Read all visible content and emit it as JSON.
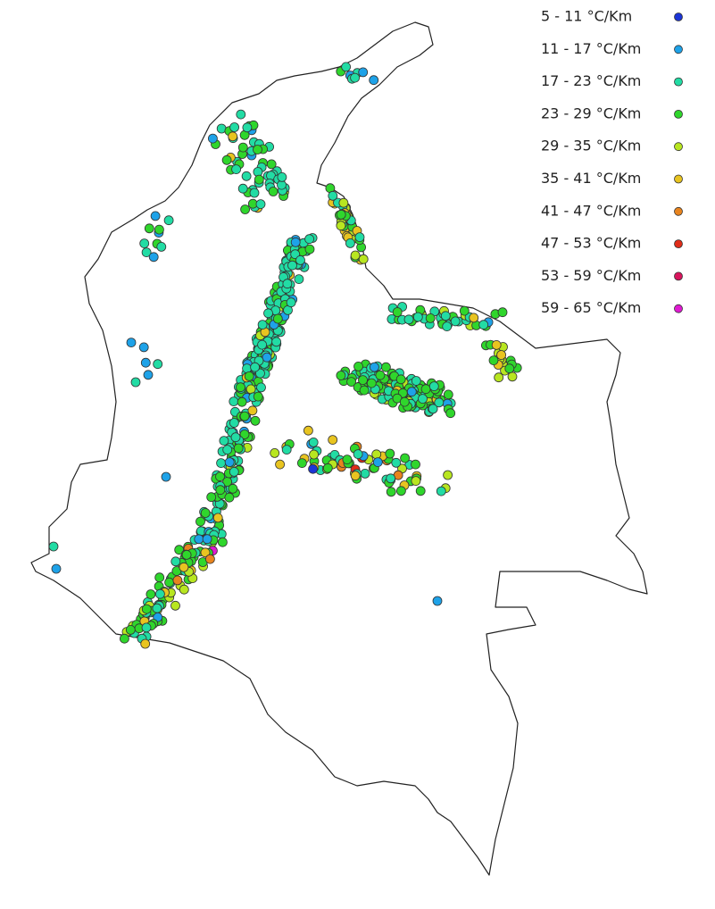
{
  "legend": {
    "items": [
      {
        "label": "5 - 11 °C/Km",
        "color": "#1c35d6"
      },
      {
        "label": "11 - 17 °C/Km",
        "color": "#1ea2e8"
      },
      {
        "label": "17 - 23 °C/Km",
        "color": "#22dca4"
      },
      {
        "label": "23 - 29 °C/Km",
        "color": "#2fd62c"
      },
      {
        "label": "29 - 35 °C/Km",
        "color": "#b8e620"
      },
      {
        "label": "35 - 41 °C/Km",
        "color": "#e8c420"
      },
      {
        "label": "41 - 47 °C/Km",
        "color": "#e8841e"
      },
      {
        "label": "47 - 53 °C/Km",
        "color": "#e02c18"
      },
      {
        "label": "53 - 59 °C/Km",
        "color": "#d8145c"
      },
      {
        "label": "59 - 65 °C/Km",
        "color": "#e01ad2"
      }
    ]
  }
}
